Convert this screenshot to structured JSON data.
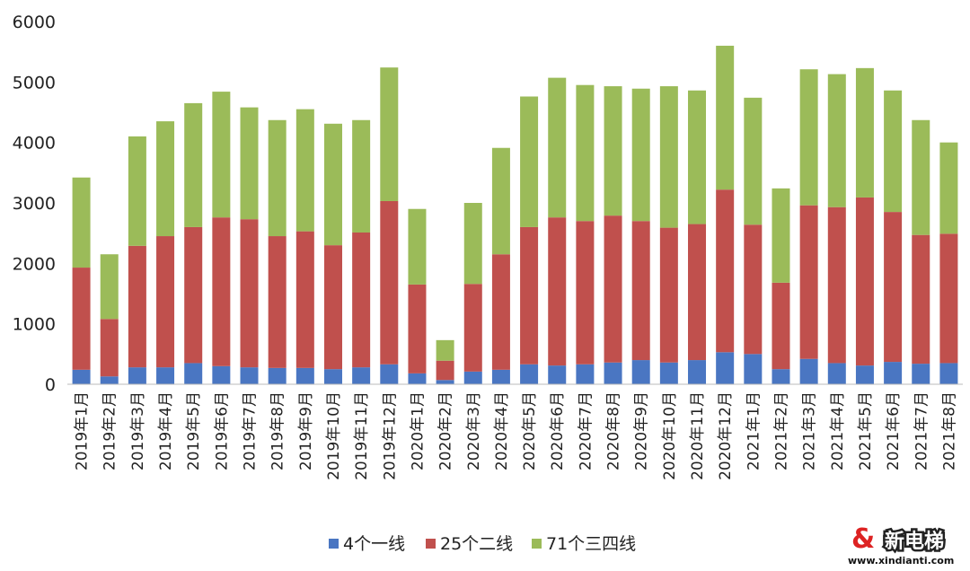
{
  "chart_data": {
    "type": "bar",
    "stacked": true,
    "title": "",
    "xlabel": "",
    "ylabel": "",
    "ylim": [
      0,
      6000
    ],
    "yticks": [
      0,
      1000,
      2000,
      3000,
      4000,
      5000,
      6000
    ],
    "grid": false,
    "legend_position": "bottom",
    "categories": [
      "2019年1月",
      "2019年2月",
      "2019年3月",
      "2019年4月",
      "2019年5月",
      "2019年6月",
      "2019年7月",
      "2019年8月",
      "2019年9月",
      "2019年10月",
      "2019年11月",
      "2019年12月",
      "2020年1月",
      "2020年2月",
      "2020年3月",
      "2020年4月",
      "2020年5月",
      "2020年6月",
      "2020年7月",
      "2020年8月",
      "2020年9月",
      "2020年10月",
      "2020年11月",
      "2020年12月",
      "2021年1月",
      "2021年2月",
      "2021年3月",
      "2021年4月",
      "2021年5月",
      "2021年6月",
      "2021年7月",
      "2021年8月"
    ],
    "series": [
      {
        "name": "4个一线",
        "color": "#4a76c2",
        "values": [
          240,
          130,
          280,
          280,
          350,
          300,
          280,
          270,
          270,
          250,
          280,
          330,
          180,
          70,
          210,
          240,
          330,
          310,
          330,
          360,
          400,
          360,
          400,
          530,
          500,
          250,
          420,
          350,
          310,
          370,
          340,
          350
        ]
      },
      {
        "name": "25个二线",
        "color": "#c0504d",
        "values": [
          1690,
          950,
          2010,
          2170,
          2250,
          2460,
          2450,
          2180,
          2260,
          2050,
          2230,
          2700,
          1470,
          320,
          1450,
          1910,
          2270,
          2450,
          2370,
          2430,
          2300,
          2230,
          2250,
          2690,
          2140,
          1430,
          2540,
          2580,
          2780,
          2480,
          2130,
          2140
        ]
      },
      {
        "name": "71个三四线",
        "color": "#9bbb59",
        "values": [
          1490,
          1070,
          1810,
          1900,
          2050,
          2080,
          1850,
          1920,
          2020,
          2010,
          1860,
          2210,
          1250,
          340,
          1340,
          1760,
          2160,
          2310,
          2250,
          2140,
          2190,
          2340,
          2210,
          2380,
          2100,
          1560,
          2250,
          2200,
          2140,
          2010,
          1900,
          1510
        ]
      }
    ]
  },
  "watermark": {
    "name": "新电梯",
    "site": "www.xindianti.com"
  }
}
